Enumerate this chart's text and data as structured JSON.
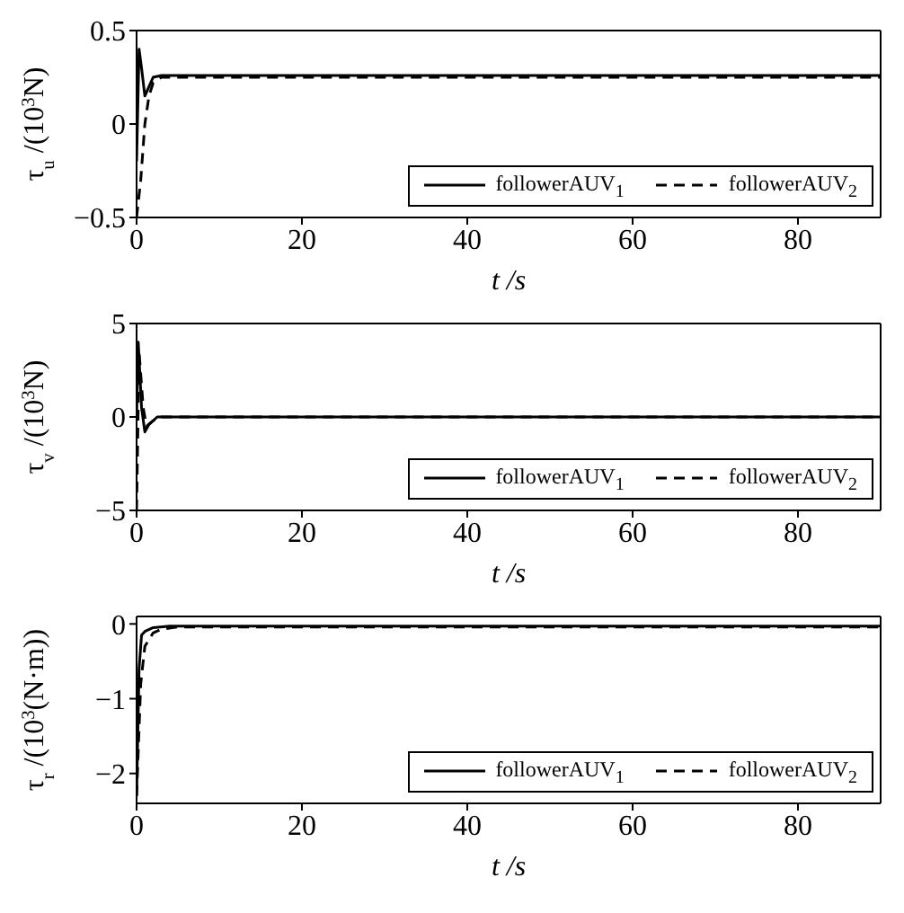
{
  "chart_data": [
    {
      "type": "line",
      "ylabel": "τ$_{u}$ /(10$^{3}$N)",
      "xlabel": "t /s",
      "xlim": [
        0,
        90
      ],
      "xticks": [
        0,
        20,
        40,
        60,
        80
      ],
      "ylim": [
        -0.5,
        0.5
      ],
      "yticks": [
        -0.5,
        0,
        0.5
      ],
      "legend": "bottom right",
      "series": [
        {
          "name": "followerAUV$_{1}$",
          "color": "#000000",
          "line_style": "solid",
          "x": [
            0,
            0.3,
            0.6,
            1,
            1.5,
            2,
            3,
            5,
            90
          ],
          "values": [
            -0.2,
            0.4,
            0.3,
            0.15,
            0.2,
            0.25,
            0.26,
            0.26,
            0.26
          ]
        },
        {
          "name": "followerAUV$_{2}$",
          "color": "#000000",
          "line_style": "dashed",
          "x": [
            0,
            0.5,
            1,
            1.5,
            2,
            3,
            5,
            90
          ],
          "values": [
            -0.5,
            -0.3,
            0,
            0.15,
            0.22,
            0.25,
            0.25,
            0.25
          ]
        }
      ]
    },
    {
      "type": "line",
      "ylabel": "τ$_{v}$ /(10$^{3}$N)",
      "xlabel": "t /s",
      "xlim": [
        0,
        90
      ],
      "xticks": [
        0,
        20,
        40,
        60,
        80
      ],
      "ylim": [
        -5,
        5
      ],
      "yticks": [
        -5,
        0,
        5
      ],
      "legend": "bottom right",
      "series": [
        {
          "name": "followerAUV$_{1}$",
          "color": "#000000",
          "line_style": "solid",
          "x": [
            0,
            0.2,
            0.6,
            1,
            1.5,
            2.5,
            5,
            90
          ],
          "values": [
            0,
            4,
            0.5,
            -0.8,
            -0.4,
            0,
            0,
            0
          ]
        },
        {
          "name": "followerAUV$_{2}$",
          "color": "#000000",
          "line_style": "dashed",
          "x": [
            0,
            0.3,
            0.8,
            1.2,
            2,
            3,
            5,
            90
          ],
          "values": [
            -5,
            3.5,
            0.5,
            -0.5,
            -0.2,
            0,
            0,
            0
          ]
        }
      ]
    },
    {
      "type": "line",
      "ylabel": "τ$_{r}$ /(10$^{3}$(N·m))",
      "xlabel": "t /s",
      "xlim": [
        0,
        90
      ],
      "xticks": [
        0,
        20,
        40,
        60,
        80
      ],
      "ylim": [
        -2.4,
        0.1
      ],
      "yticks": [
        -2,
        -1,
        0
      ],
      "legend": "bottom right",
      "series": [
        {
          "name": "followerAUV$_{1}$",
          "color": "#000000",
          "line_style": "solid",
          "x": [
            0,
            0.3,
            0.6,
            1,
            2,
            4,
            90
          ],
          "values": [
            -2.3,
            -0.6,
            -0.15,
            -0.1,
            -0.05,
            -0.03,
            -0.03
          ]
        },
        {
          "name": "followerAUV$_{2}$",
          "color": "#000000",
          "line_style": "dashed",
          "x": [
            0,
            0.5,
            1,
            2,
            3,
            5,
            90
          ],
          "values": [
            -2.3,
            -0.8,
            -0.3,
            -0.12,
            -0.07,
            -0.04,
            -0.04
          ]
        }
      ]
    }
  ]
}
